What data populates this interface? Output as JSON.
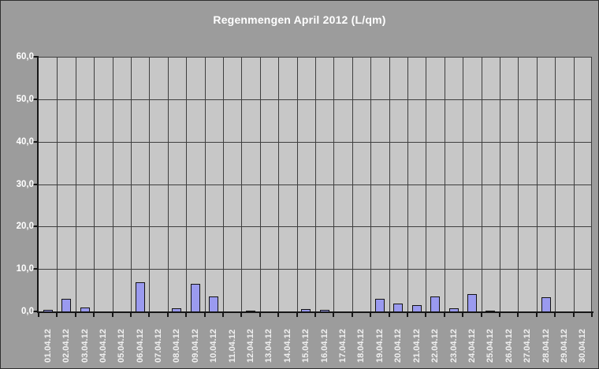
{
  "chart": {
    "colors": {
      "outer_bg": "#9c9c9c",
      "plot_bg": "#c7c7c7",
      "bar_fill": "#9a9aef",
      "bar_border": "#121212",
      "grid": "#3e3e3e",
      "axis": "#161616",
      "text": "#ffffff"
    }
  },
  "chart_data": {
    "type": "bar",
    "title": "Regenmengen April 2012 (L/qm)",
    "categories": [
      "01.04.12",
      "02.04.12",
      "03.04.12",
      "04.04.12",
      "05.04.12",
      "06.04.12",
      "07.04.12",
      "08.04.12",
      "09.04.12",
      "10.04.12",
      "11.04.12",
      "12.04.12",
      "13.04.12",
      "14.04.12",
      "15.04.12",
      "16.04.12",
      "17.04.12",
      "18.04.12",
      "19.04.12",
      "20.04.12",
      "21.04.12",
      "22.04.12",
      "23.04.12",
      "24.04.12",
      "25.04.12",
      "26.04.12",
      "27.04.12",
      "28.04.12",
      "29.04.12",
      "30.04.12"
    ],
    "values": [
      0.4,
      2.9,
      0.9,
      0,
      0,
      6.9,
      0,
      0.7,
      6.5,
      3.5,
      0,
      0.2,
      0,
      0,
      0.5,
      0.3,
      0,
      0,
      3.0,
      1.9,
      1.4,
      3.6,
      0.7,
      4.0,
      0.2,
      0,
      0,
      3.3,
      0,
      0
    ],
    "xlabel": "",
    "ylabel": "",
    "ylim": [
      0,
      60
    ],
    "ytick_step": 10,
    "ytick_labels": [
      "0,0",
      "10,0",
      "20,0",
      "30,0",
      "40,0",
      "50,0",
      "60,0"
    ],
    "grid": true,
    "legend": false,
    "x_label_rotation": -90
  }
}
